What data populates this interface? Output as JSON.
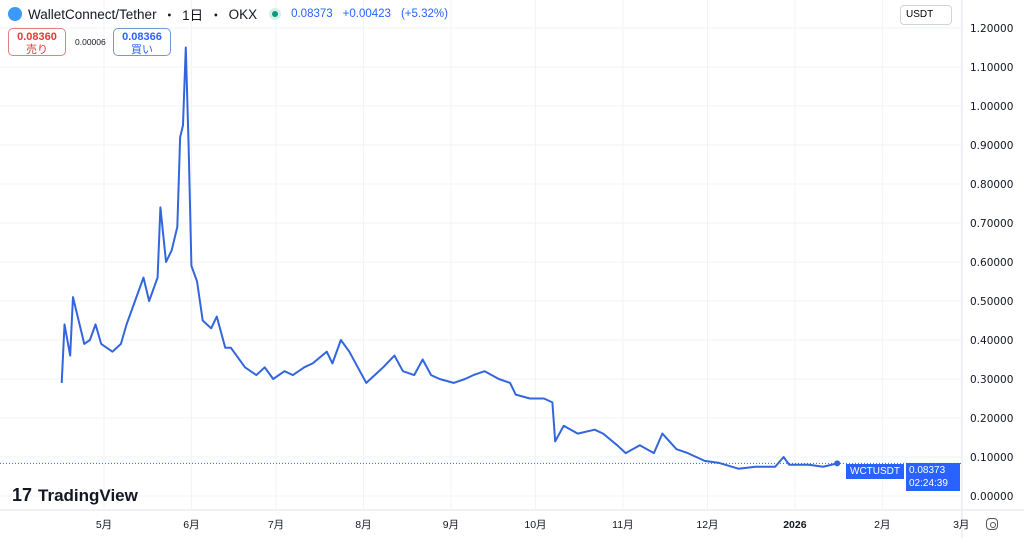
{
  "header": {
    "pair": "WalletConnect/Tether",
    "interval": "1日",
    "exchange": "OKX",
    "last": "0.08373",
    "change": "+0.00423",
    "change_pct": "(+5.32%)"
  },
  "trade": {
    "sell_price": "0.08360",
    "sell_label": "売り",
    "spread": "0.00006",
    "buy_price": "0.08366",
    "buy_label": "買い"
  },
  "currency": "USDT",
  "branding": "TradingView",
  "price_tag": {
    "symbol": "WCTUSDT",
    "price": "0.08373",
    "countdown": "02:24:39"
  },
  "colors": {
    "line": "#3366dd",
    "accent": "#2962ff",
    "sell": "#e03a3a",
    "up": "#089981"
  },
  "chart_data": {
    "type": "line",
    "ylim": [
      0,
      1.2
    ],
    "y_ticks": [
      "0.00000",
      "0.10000",
      "0.20000",
      "0.30000",
      "0.40000",
      "0.50000",
      "0.60000",
      "0.70000",
      "0.80000",
      "0.90000",
      "1.00000",
      "1.10000",
      "1.20000"
    ],
    "x_ticks": [
      {
        "label": "5月",
        "date": "2025-05-01"
      },
      {
        "label": "6月",
        "date": "2025-06-01"
      },
      {
        "label": "7月",
        "date": "2025-07-01"
      },
      {
        "label": "8月",
        "date": "2025-08-01"
      },
      {
        "label": "9月",
        "date": "2025-09-01"
      },
      {
        "label": "10月",
        "date": "2025-10-01"
      },
      {
        "label": "11月",
        "date": "2025-11-01"
      },
      {
        "label": "12月",
        "date": "2025-12-01"
      },
      {
        "label": "2026",
        "date": "2026-01-01"
      },
      {
        "label": "2月",
        "date": "2026-02-01"
      },
      {
        "label": "3月",
        "date": "2026-03-01"
      }
    ],
    "grid": true,
    "series": [
      {
        "points": [
          [
            "2025-04-16",
            0.29
          ],
          [
            "2025-04-17",
            0.44
          ],
          [
            "2025-04-19",
            0.36
          ],
          [
            "2025-04-20",
            0.51
          ],
          [
            "2025-04-22",
            0.45
          ],
          [
            "2025-04-24",
            0.39
          ],
          [
            "2025-04-26",
            0.4
          ],
          [
            "2025-04-28",
            0.44
          ],
          [
            "2025-04-30",
            0.39
          ],
          [
            "2025-05-02",
            0.38
          ],
          [
            "2025-05-04",
            0.37
          ],
          [
            "2025-05-07",
            0.39
          ],
          [
            "2025-05-09",
            0.44
          ],
          [
            "2025-05-12",
            0.5
          ],
          [
            "2025-05-15",
            0.56
          ],
          [
            "2025-05-17",
            0.5
          ],
          [
            "2025-05-20",
            0.56
          ],
          [
            "2025-05-21",
            0.74
          ],
          [
            "2025-05-23",
            0.6
          ],
          [
            "2025-05-25",
            0.63
          ],
          [
            "2025-05-27",
            0.69
          ],
          [
            "2025-05-28",
            0.92
          ],
          [
            "2025-05-29",
            0.95
          ],
          [
            "2025-05-30",
            1.15
          ],
          [
            "2025-05-31",
            0.9
          ],
          [
            "2025-06-01",
            0.59
          ],
          [
            "2025-06-03",
            0.55
          ],
          [
            "2025-06-05",
            0.45
          ],
          [
            "2025-06-08",
            0.43
          ],
          [
            "2025-06-10",
            0.46
          ],
          [
            "2025-06-13",
            0.38
          ],
          [
            "2025-06-15",
            0.38
          ],
          [
            "2025-06-20",
            0.33
          ],
          [
            "2025-06-24",
            0.31
          ],
          [
            "2025-06-27",
            0.33
          ],
          [
            "2025-06-30",
            0.3
          ],
          [
            "2025-07-04",
            0.32
          ],
          [
            "2025-07-07",
            0.31
          ],
          [
            "2025-07-11",
            0.33
          ],
          [
            "2025-07-14",
            0.34
          ],
          [
            "2025-07-19",
            0.37
          ],
          [
            "2025-07-21",
            0.34
          ],
          [
            "2025-07-24",
            0.4
          ],
          [
            "2025-07-27",
            0.37
          ],
          [
            "2025-07-30",
            0.33
          ],
          [
            "2025-08-02",
            0.29
          ],
          [
            "2025-08-05",
            0.31
          ],
          [
            "2025-08-08",
            0.33
          ],
          [
            "2025-08-12",
            0.36
          ],
          [
            "2025-08-15",
            0.32
          ],
          [
            "2025-08-19",
            0.31
          ],
          [
            "2025-08-22",
            0.35
          ],
          [
            "2025-08-25",
            0.31
          ],
          [
            "2025-08-28",
            0.3
          ],
          [
            "2025-09-02",
            0.29
          ],
          [
            "2025-09-06",
            0.3
          ],
          [
            "2025-09-09",
            0.31
          ],
          [
            "2025-09-13",
            0.32
          ],
          [
            "2025-09-18",
            0.3
          ],
          [
            "2025-09-22",
            0.29
          ],
          [
            "2025-09-24",
            0.26
          ],
          [
            "2025-09-29",
            0.25
          ],
          [
            "2025-10-04",
            0.25
          ],
          [
            "2025-10-07",
            0.24
          ],
          [
            "2025-10-08",
            0.14
          ],
          [
            "2025-10-11",
            0.18
          ],
          [
            "2025-10-16",
            0.16
          ],
          [
            "2025-10-22",
            0.17
          ],
          [
            "2025-10-25",
            0.16
          ],
          [
            "2025-10-30",
            0.13
          ],
          [
            "2025-11-02",
            0.11
          ],
          [
            "2025-11-07",
            0.13
          ],
          [
            "2025-11-12",
            0.11
          ],
          [
            "2025-11-15",
            0.16
          ],
          [
            "2025-11-20",
            0.12
          ],
          [
            "2025-11-24",
            0.11
          ],
          [
            "2025-11-30",
            0.09
          ],
          [
            "2025-12-05",
            0.085
          ],
          [
            "2025-12-12",
            0.07
          ],
          [
            "2025-12-18",
            0.075
          ],
          [
            "2025-12-25",
            0.075
          ],
          [
            "2025-12-28",
            0.1
          ],
          [
            "2025-12-30",
            0.08
          ],
          [
            "2026-01-06",
            0.08
          ],
          [
            "2026-01-11",
            0.075
          ],
          [
            "2026-01-16",
            0.08373
          ]
        ]
      }
    ]
  }
}
